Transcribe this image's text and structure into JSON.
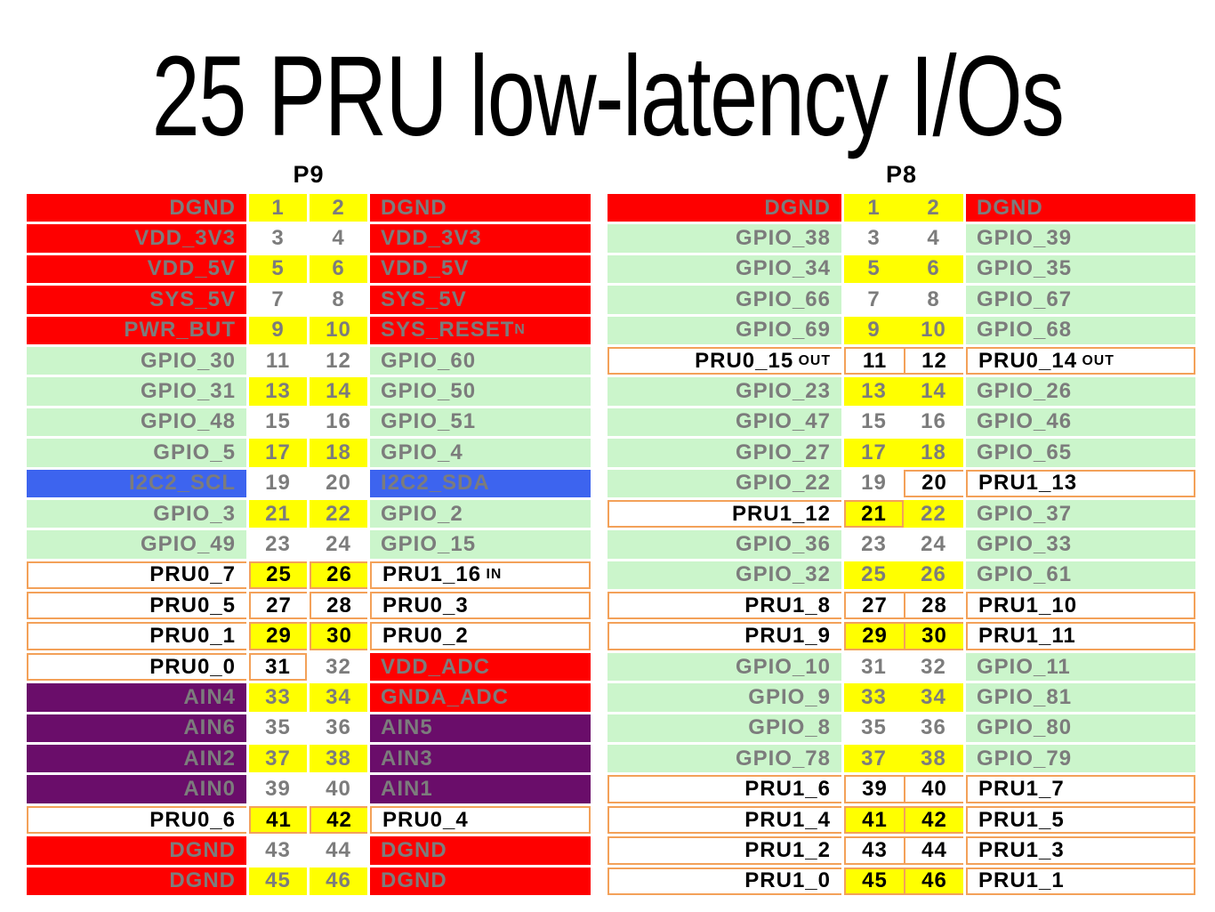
{
  "title": "25 PRU low-latency I/Os",
  "colors": {
    "power": "#FE0000",
    "gpio": "#CBF5CB",
    "i2c": "#3D64EF",
    "ain": "#6A0D6A",
    "yellow": "#FFFF00",
    "white": "#FFFFFF",
    "outline": "#F3A159",
    "gray_text": "#7C7C7C",
    "black_text": "#000000"
  },
  "tables": [
    {
      "name": "P9",
      "rows": [
        {
          "cells": [
            {
              "t": "DGND",
              "bg": "power"
            },
            {
              "t": "1",
              "bg": "yellow"
            },
            {
              "t": "2",
              "bg": "yellow"
            },
            {
              "t": "DGND",
              "bg": "power"
            }
          ]
        },
        {
          "cells": [
            {
              "t": "VDD_3V3",
              "bg": "power"
            },
            {
              "t": "3",
              "bg": "white"
            },
            {
              "t": "4",
              "bg": "white"
            },
            {
              "t": "VDD_3V3",
              "bg": "power"
            }
          ]
        },
        {
          "cells": [
            {
              "t": "VDD_5V",
              "bg": "power"
            },
            {
              "t": "5",
              "bg": "yellow"
            },
            {
              "t": "6",
              "bg": "yellow"
            },
            {
              "t": "VDD_5V",
              "bg": "power"
            }
          ]
        },
        {
          "cells": [
            {
              "t": "SYS_5V",
              "bg": "power"
            },
            {
              "t": "7",
              "bg": "white"
            },
            {
              "t": "8",
              "bg": "white"
            },
            {
              "t": "SYS_5V",
              "bg": "power"
            }
          ]
        },
        {
          "cells": [
            {
              "t": "PWR_BUT",
              "bg": "power"
            },
            {
              "t": "9",
              "bg": "yellow"
            },
            {
              "t": "10",
              "bg": "yellow"
            },
            {
              "t": "SYS_RESET",
              "s": "N",
              "bg": "power"
            }
          ]
        },
        {
          "cells": [
            {
              "t": "GPIO_30",
              "bg": "gpio"
            },
            {
              "t": "11",
              "bg": "white"
            },
            {
              "t": "12",
              "bg": "white"
            },
            {
              "t": "GPIO_60",
              "bg": "gpio"
            }
          ]
        },
        {
          "cells": [
            {
              "t": "GPIO_31",
              "bg": "gpio"
            },
            {
              "t": "13",
              "bg": "yellow"
            },
            {
              "t": "14",
              "bg": "yellow"
            },
            {
              "t": "GPIO_50",
              "bg": "gpio"
            }
          ]
        },
        {
          "cells": [
            {
              "t": "GPIO_48",
              "bg": "gpio"
            },
            {
              "t": "15",
              "bg": "white"
            },
            {
              "t": "16",
              "bg": "white"
            },
            {
              "t": "GPIO_51",
              "bg": "gpio"
            }
          ]
        },
        {
          "cells": [
            {
              "t": "GPIO_5",
              "bg": "gpio"
            },
            {
              "t": "17",
              "bg": "yellow"
            },
            {
              "t": "18",
              "bg": "yellow"
            },
            {
              "t": "GPIO_4",
              "bg": "gpio"
            }
          ]
        },
        {
          "cells": [
            {
              "t": "I2C2_SCL",
              "bg": "i2c"
            },
            {
              "t": "19",
              "bg": "white"
            },
            {
              "t": "20",
              "bg": "white"
            },
            {
              "t": "I2C2_SDA",
              "bg": "i2c"
            }
          ]
        },
        {
          "cells": [
            {
              "t": "GPIO_3",
              "bg": "gpio"
            },
            {
              "t": "21",
              "bg": "yellow"
            },
            {
              "t": "22",
              "bg": "yellow"
            },
            {
              "t": "GPIO_2",
              "bg": "gpio"
            }
          ]
        },
        {
          "cells": [
            {
              "t": "GPIO_49",
              "bg": "gpio"
            },
            {
              "t": "23",
              "bg": "white"
            },
            {
              "t": "24",
              "bg": "white"
            },
            {
              "t": "GPIO_15",
              "bg": "gpio"
            }
          ]
        },
        {
          "outline": [
            [
              0,
              3
            ]
          ],
          "cells": [
            {
              "t": "PRU0_7",
              "bg": "white"
            },
            {
              "t": "25",
              "bg": "yellow"
            },
            {
              "t": "26",
              "bg": "yellow"
            },
            {
              "t": "PRU1_16",
              "s": " IN",
              "bg": "white"
            }
          ]
        },
        {
          "outline": [
            [
              0,
              3
            ]
          ],
          "cells": [
            {
              "t": "PRU0_5",
              "bg": "white"
            },
            {
              "t": "27",
              "bg": "white"
            },
            {
              "t": "28",
              "bg": "white"
            },
            {
              "t": "PRU0_3",
              "bg": "white"
            }
          ]
        },
        {
          "outline": [
            [
              0,
              3
            ]
          ],
          "cells": [
            {
              "t": "PRU0_1",
              "bg": "white"
            },
            {
              "t": "29",
              "bg": "yellow"
            },
            {
              "t": "30",
              "bg": "yellow"
            },
            {
              "t": "PRU0_2",
              "bg": "white"
            }
          ]
        },
        {
          "outline": [
            [
              0,
              1
            ]
          ],
          "cells": [
            {
              "t": "PRU0_0",
              "bg": "white"
            },
            {
              "t": "31",
              "bg": "white"
            },
            {
              "t": "32",
              "bg": "white"
            },
            {
              "t": "VDD_ADC",
              "bg": "power"
            }
          ]
        },
        {
          "cells": [
            {
              "t": "AIN4",
              "bg": "ain"
            },
            {
              "t": "33",
              "bg": "yellow"
            },
            {
              "t": "34",
              "bg": "yellow"
            },
            {
              "t": "GNDA_ADC",
              "bg": "power"
            }
          ]
        },
        {
          "cells": [
            {
              "t": "AIN6",
              "bg": "ain"
            },
            {
              "t": "35",
              "bg": "white"
            },
            {
              "t": "36",
              "bg": "white"
            },
            {
              "t": "AIN5",
              "bg": "ain"
            }
          ]
        },
        {
          "cells": [
            {
              "t": "AIN2",
              "bg": "ain"
            },
            {
              "t": "37",
              "bg": "yellow"
            },
            {
              "t": "38",
              "bg": "yellow"
            },
            {
              "t": "AIN3",
              "bg": "ain"
            }
          ]
        },
        {
          "cells": [
            {
              "t": "AIN0",
              "bg": "ain"
            },
            {
              "t": "39",
              "bg": "white"
            },
            {
              "t": "40",
              "bg": "white"
            },
            {
              "t": "AIN1",
              "bg": "ain"
            }
          ]
        },
        {
          "outline": [
            [
              0,
              3
            ]
          ],
          "cells": [
            {
              "t": "PRU0_6",
              "bg": "white"
            },
            {
              "t": "41",
              "bg": "yellow"
            },
            {
              "t": "42",
              "bg": "yellow"
            },
            {
              "t": "PRU0_4",
              "bg": "white"
            }
          ]
        },
        {
          "cells": [
            {
              "t": "DGND",
              "bg": "power"
            },
            {
              "t": "43",
              "bg": "white"
            },
            {
              "t": "44",
              "bg": "white"
            },
            {
              "t": "DGND",
              "bg": "power"
            }
          ]
        },
        {
          "cells": [
            {
              "t": "DGND",
              "bg": "power"
            },
            {
              "t": "45",
              "bg": "yellow"
            },
            {
              "t": "46",
              "bg": "yellow"
            },
            {
              "t": "DGND",
              "bg": "power"
            }
          ]
        }
      ]
    },
    {
      "name": "P8",
      "rows": [
        {
          "cells": [
            {
              "t": "DGND",
              "bg": "power"
            },
            {
              "t": "1",
              "bg": "yellow"
            },
            {
              "t": "2",
              "bg": "yellow"
            },
            {
              "t": "DGND",
              "bg": "power"
            }
          ]
        },
        {
          "cells": [
            {
              "t": "GPIO_38",
              "bg": "gpio"
            },
            {
              "t": "3",
              "bg": "white"
            },
            {
              "t": "4",
              "bg": "white"
            },
            {
              "t": "GPIO_39",
              "bg": "gpio"
            }
          ]
        },
        {
          "cells": [
            {
              "t": "GPIO_34",
              "bg": "gpio"
            },
            {
              "t": "5",
              "bg": "yellow"
            },
            {
              "t": "6",
              "bg": "yellow"
            },
            {
              "t": "GPIO_35",
              "bg": "gpio"
            }
          ]
        },
        {
          "cells": [
            {
              "t": "GPIO_66",
              "bg": "gpio"
            },
            {
              "t": "7",
              "bg": "white"
            },
            {
              "t": "8",
              "bg": "white"
            },
            {
              "t": "GPIO_67",
              "bg": "gpio"
            }
          ]
        },
        {
          "cells": [
            {
              "t": "GPIO_69",
              "bg": "gpio"
            },
            {
              "t": "9",
              "bg": "yellow"
            },
            {
              "t": "10",
              "bg": "yellow"
            },
            {
              "t": "GPIO_68",
              "bg": "gpio"
            }
          ]
        },
        {
          "outline": [
            [
              0,
              3
            ]
          ],
          "cells": [
            {
              "t": "PRU0_15",
              "s": " OUT",
              "bg": "white"
            },
            {
              "t": "11",
              "bg": "white"
            },
            {
              "t": "12",
              "bg": "white"
            },
            {
              "t": "PRU0_14",
              "s": " OUT",
              "bg": "white"
            }
          ]
        },
        {
          "cells": [
            {
              "t": "GPIO_23",
              "bg": "gpio"
            },
            {
              "t": "13",
              "bg": "yellow"
            },
            {
              "t": "14",
              "bg": "yellow"
            },
            {
              "t": "GPIO_26",
              "bg": "gpio"
            }
          ]
        },
        {
          "cells": [
            {
              "t": "GPIO_47",
              "bg": "gpio"
            },
            {
              "t": "15",
              "bg": "white"
            },
            {
              "t": "16",
              "bg": "white"
            },
            {
              "t": "GPIO_46",
              "bg": "gpio"
            }
          ]
        },
        {
          "cells": [
            {
              "t": "GPIO_27",
              "bg": "gpio"
            },
            {
              "t": "17",
              "bg": "yellow"
            },
            {
              "t": "18",
              "bg": "yellow"
            },
            {
              "t": "GPIO_65",
              "bg": "gpio"
            }
          ]
        },
        {
          "outline": [
            [
              2,
              3
            ]
          ],
          "cells": [
            {
              "t": "GPIO_22",
              "bg": "gpio"
            },
            {
              "t": "19",
              "bg": "white"
            },
            {
              "t": "20",
              "bg": "white"
            },
            {
              "t": "PRU1_13",
              "bg": "white"
            }
          ]
        },
        {
          "outline": [
            [
              0,
              1
            ]
          ],
          "cells": [
            {
              "t": "PRU1_12",
              "bg": "white"
            },
            {
              "t": "21",
              "bg": "yellow"
            },
            {
              "t": "22",
              "bg": "yellow"
            },
            {
              "t": "GPIO_37",
              "bg": "gpio"
            }
          ]
        },
        {
          "cells": [
            {
              "t": "GPIO_36",
              "bg": "gpio"
            },
            {
              "t": "23",
              "bg": "white"
            },
            {
              "t": "24",
              "bg": "white"
            },
            {
              "t": "GPIO_33",
              "bg": "gpio"
            }
          ]
        },
        {
          "cells": [
            {
              "t": "GPIO_32",
              "bg": "gpio"
            },
            {
              "t": "25",
              "bg": "yellow"
            },
            {
              "t": "26",
              "bg": "yellow"
            },
            {
              "t": "GPIO_61",
              "bg": "gpio"
            }
          ]
        },
        {
          "outline": [
            [
              0,
              3
            ]
          ],
          "cells": [
            {
              "t": "PRU1_8",
              "bg": "white"
            },
            {
              "t": "27",
              "bg": "white"
            },
            {
              "t": "28",
              "bg": "white"
            },
            {
              "t": "PRU1_10",
              "bg": "white"
            }
          ]
        },
        {
          "outline": [
            [
              0,
              3
            ]
          ],
          "cells": [
            {
              "t": "PRU1_9",
              "bg": "white"
            },
            {
              "t": "29",
              "bg": "yellow"
            },
            {
              "t": "30",
              "bg": "yellow"
            },
            {
              "t": "PRU1_11",
              "bg": "white"
            }
          ]
        },
        {
          "cells": [
            {
              "t": "GPIO_10",
              "bg": "gpio"
            },
            {
              "t": "31",
              "bg": "white"
            },
            {
              "t": "32",
              "bg": "white"
            },
            {
              "t": "GPIO_11",
              "bg": "gpio"
            }
          ]
        },
        {
          "cells": [
            {
              "t": "GPIO_9",
              "bg": "gpio"
            },
            {
              "t": "33",
              "bg": "yellow"
            },
            {
              "t": "34",
              "bg": "yellow"
            },
            {
              "t": "GPIO_81",
              "bg": "gpio"
            }
          ]
        },
        {
          "cells": [
            {
              "t": "GPIO_8",
              "bg": "gpio"
            },
            {
              "t": "35",
              "bg": "white"
            },
            {
              "t": "36",
              "bg": "white"
            },
            {
              "t": "GPIO_80",
              "bg": "gpio"
            }
          ]
        },
        {
          "cells": [
            {
              "t": "GPIO_78",
              "bg": "gpio"
            },
            {
              "t": "37",
              "bg": "yellow"
            },
            {
              "t": "38",
              "bg": "yellow"
            },
            {
              "t": "GPIO_79",
              "bg": "gpio"
            }
          ]
        },
        {
          "outline": [
            [
              0,
              3
            ]
          ],
          "cells": [
            {
              "t": "PRU1_6",
              "bg": "white"
            },
            {
              "t": "39",
              "bg": "white"
            },
            {
              "t": "40",
              "bg": "white"
            },
            {
              "t": "PRU1_7",
              "bg": "white"
            }
          ]
        },
        {
          "outline": [
            [
              0,
              3
            ]
          ],
          "cells": [
            {
              "t": "PRU1_4",
              "bg": "white"
            },
            {
              "t": "41",
              "bg": "yellow"
            },
            {
              "t": "42",
              "bg": "yellow"
            },
            {
              "t": "PRU1_5",
              "bg": "white"
            }
          ]
        },
        {
          "outline": [
            [
              0,
              3
            ]
          ],
          "cells": [
            {
              "t": "PRU1_2",
              "bg": "white"
            },
            {
              "t": "43",
              "bg": "white"
            },
            {
              "t": "44",
              "bg": "white"
            },
            {
              "t": "PRU1_3",
              "bg": "white"
            }
          ]
        },
        {
          "outline": [
            [
              0,
              3
            ]
          ],
          "cells": [
            {
              "t": "PRU1_0",
              "bg": "white"
            },
            {
              "t": "45",
              "bg": "yellow"
            },
            {
              "t": "46",
              "bg": "yellow"
            },
            {
              "t": "PRU1_1",
              "bg": "white"
            }
          ]
        }
      ]
    }
  ]
}
